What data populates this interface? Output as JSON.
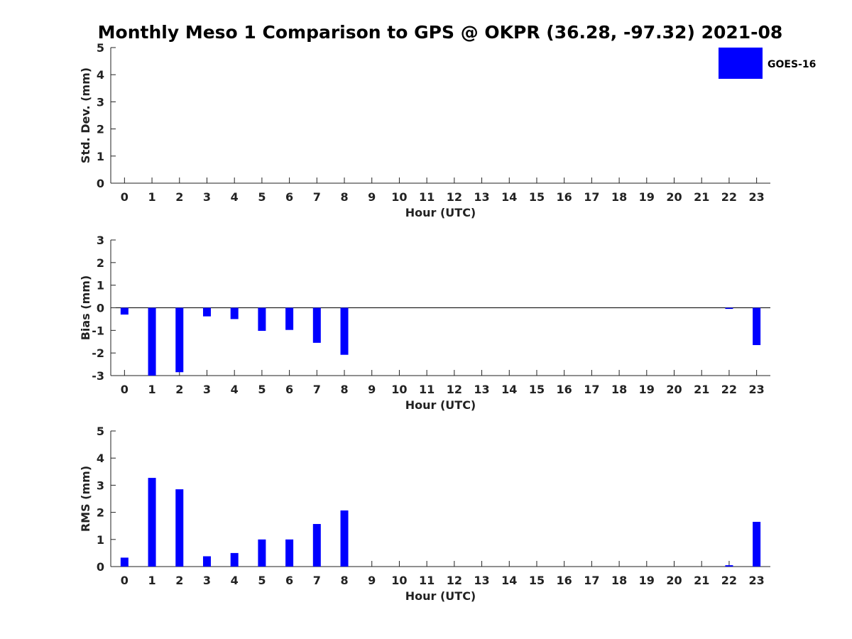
{
  "title": "Monthly Meso 1 Comparison to GPS @ OKPR (36.28, -97.32) 2021-08",
  "legend": {
    "label": "GOES-16",
    "color": "#0000ff"
  },
  "chart_data": [
    {
      "type": "bar",
      "xlabel": "Hour (UTC)",
      "ylabel": "Std. Dev. (mm)",
      "categories": [
        "0",
        "1",
        "2",
        "3",
        "4",
        "5",
        "6",
        "7",
        "8",
        "9",
        "10",
        "11",
        "12",
        "13",
        "14",
        "15",
        "16",
        "17",
        "18",
        "19",
        "20",
        "21",
        "22",
        "23"
      ],
      "ylim": [
        0,
        5
      ],
      "yticks": [
        "0",
        "1",
        "2",
        "3",
        "4",
        "5"
      ],
      "values": [
        0,
        0,
        0,
        0,
        0,
        0,
        0,
        0,
        0,
        0,
        0,
        0,
        0,
        0,
        0,
        0,
        0,
        0,
        0,
        0,
        0,
        0,
        0,
        0
      ],
      "zero_line": false
    },
    {
      "type": "bar",
      "xlabel": "Hour (UTC)",
      "ylabel": "Bias (mm)",
      "categories": [
        "0",
        "1",
        "2",
        "3",
        "4",
        "5",
        "6",
        "7",
        "8",
        "9",
        "10",
        "11",
        "12",
        "13",
        "14",
        "15",
        "16",
        "17",
        "18",
        "19",
        "20",
        "21",
        "22",
        "23"
      ],
      "ylim": [
        -3,
        3
      ],
      "yticks": [
        "-3",
        "-2",
        "-1",
        "0",
        "1",
        "2",
        "3"
      ],
      "values": [
        -0.3,
        -3.0,
        -2.85,
        -0.38,
        -0.5,
        -1.02,
        -0.98,
        -1.55,
        -2.08,
        0,
        0,
        0,
        0,
        0,
        0,
        0,
        0,
        0,
        0,
        0,
        0,
        0,
        -0.05,
        -1.65
      ],
      "zero_line": true
    },
    {
      "type": "bar",
      "xlabel": "Hour (UTC)",
      "ylabel": "RMS (mm)",
      "categories": [
        "0",
        "1",
        "2",
        "3",
        "4",
        "5",
        "6",
        "7",
        "8",
        "9",
        "10",
        "11",
        "12",
        "13",
        "14",
        "15",
        "16",
        "17",
        "18",
        "19",
        "20",
        "21",
        "22",
        "23"
      ],
      "ylim": [
        0,
        5
      ],
      "yticks": [
        "0",
        "1",
        "2",
        "3",
        "4",
        "5"
      ],
      "values": [
        0.33,
        3.27,
        2.85,
        0.38,
        0.5,
        1.0,
        1.0,
        1.57,
        2.07,
        0,
        0,
        0,
        0,
        0,
        0,
        0,
        0,
        0,
        0,
        0,
        0,
        0,
        0.05,
        1.65
      ],
      "zero_line": false
    }
  ]
}
